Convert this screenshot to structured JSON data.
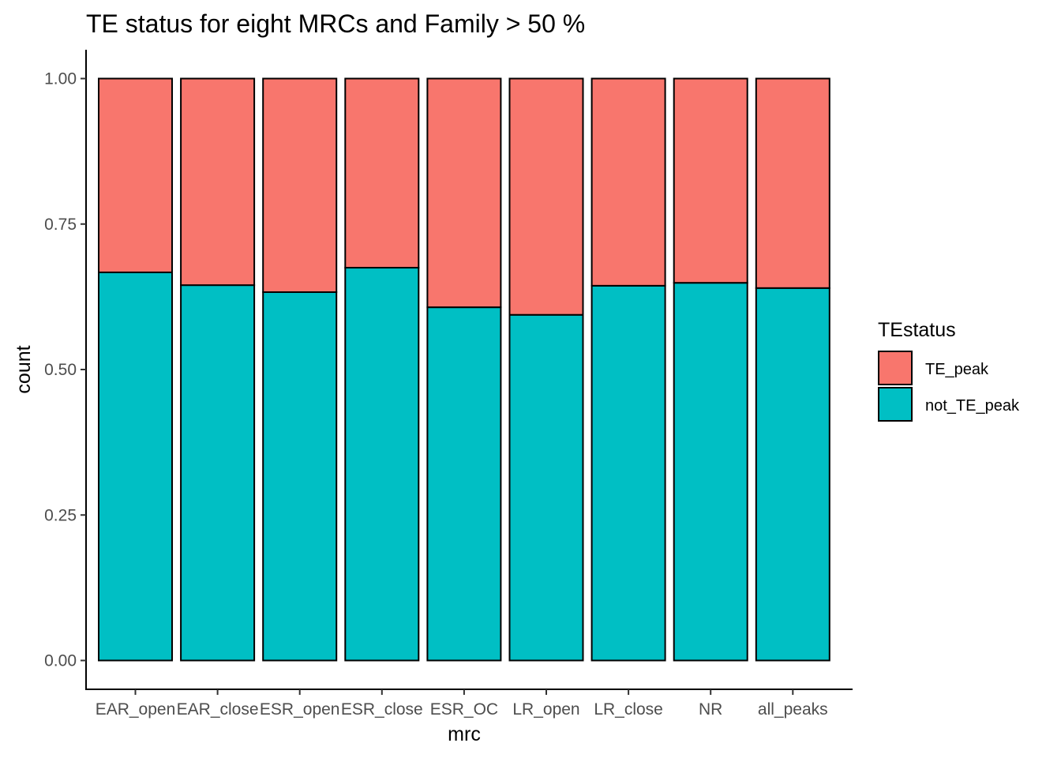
{
  "chart_data": {
    "type": "bar",
    "stacked": true,
    "position": "fill",
    "title": "TE status for eight MRCs and Family > 50 %",
    "xlabel": "mrc",
    "ylabel": "count",
    "categories": [
      "EAR_open",
      "EAR_close",
      "ESR_open",
      "ESR_close",
      "ESR_OC",
      "LR_open",
      "LR_close",
      "NR",
      "all_peaks"
    ],
    "ylim": [
      0,
      1
    ],
    "yticks": [
      0.0,
      0.25,
      0.5,
      0.75,
      1.0
    ],
    "ytick_labels": [
      "0.00",
      "0.25",
      "0.50",
      "0.75",
      "1.00"
    ],
    "series": [
      {
        "name": "not_TE_peak",
        "color": "#00BFC4",
        "values": [
          0.667,
          0.645,
          0.633,
          0.675,
          0.607,
          0.594,
          0.644,
          0.649,
          0.64
        ]
      },
      {
        "name": "TE_peak",
        "color": "#F8766D",
        "values": [
          0.333,
          0.355,
          0.367,
          0.325,
          0.393,
          0.406,
          0.356,
          0.351,
          0.36
        ]
      }
    ],
    "legend": {
      "title": "TEstatus",
      "placement": "right",
      "entries": [
        {
          "label": "TE_peak",
          "color": "#F8766D"
        },
        {
          "label": "not_TE_peak",
          "color": "#00BFC4"
        }
      ]
    },
    "grid": false
  }
}
